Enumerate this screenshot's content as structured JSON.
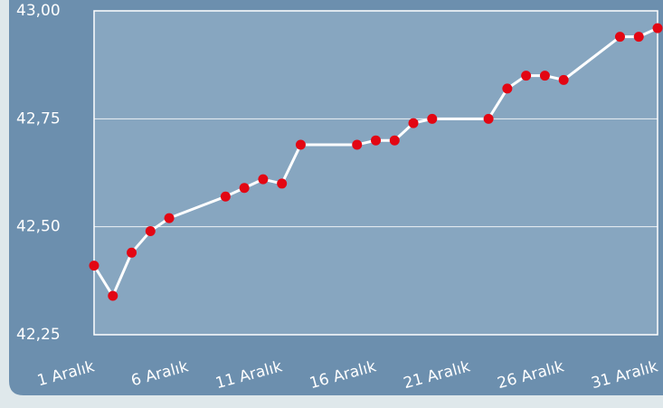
{
  "chart_data": {
    "type": "line",
    "x": [
      1,
      2,
      3,
      4,
      5,
      8,
      9,
      10,
      11,
      12,
      15,
      16,
      17,
      18,
      19,
      22,
      23,
      24,
      25,
      26,
      29,
      30,
      31
    ],
    "series": [
      {
        "color": "#ffffff",
        "marker_color": "#e30613",
        "values": [
          42.41,
          42.34,
          42.44,
          42.49,
          42.52,
          42.57,
          42.59,
          42.61,
          42.6,
          42.69,
          42.69,
          42.7,
          42.7,
          42.74,
          42.75,
          42.75,
          42.82,
          42.85,
          42.85,
          42.84,
          42.94,
          42.94,
          42.96
        ]
      }
    ],
    "xlim": [
      1,
      31
    ],
    "xticks": [
      {
        "value": 1,
        "label": "1 Aralık"
      },
      {
        "value": 6,
        "label": "6 Aralık"
      },
      {
        "value": 11,
        "label": "11 Aralık"
      },
      {
        "value": 16,
        "label": "16 Aralık"
      },
      {
        "value": 21,
        "label": "21 Aralık"
      },
      {
        "value": 26,
        "label": "26 Aralık"
      },
      {
        "value": 31,
        "label": "31 Aralık"
      }
    ],
    "ylim": [
      42.25,
      43
    ],
    "yticks": [
      {
        "value": 42.25,
        "label": "42,25"
      },
      {
        "value": 42.5,
        "label": "42,50"
      },
      {
        "value": 42.75,
        "label": "42,75"
      },
      {
        "value": 43,
        "label": "43,00"
      }
    ],
    "grid": true
  }
}
